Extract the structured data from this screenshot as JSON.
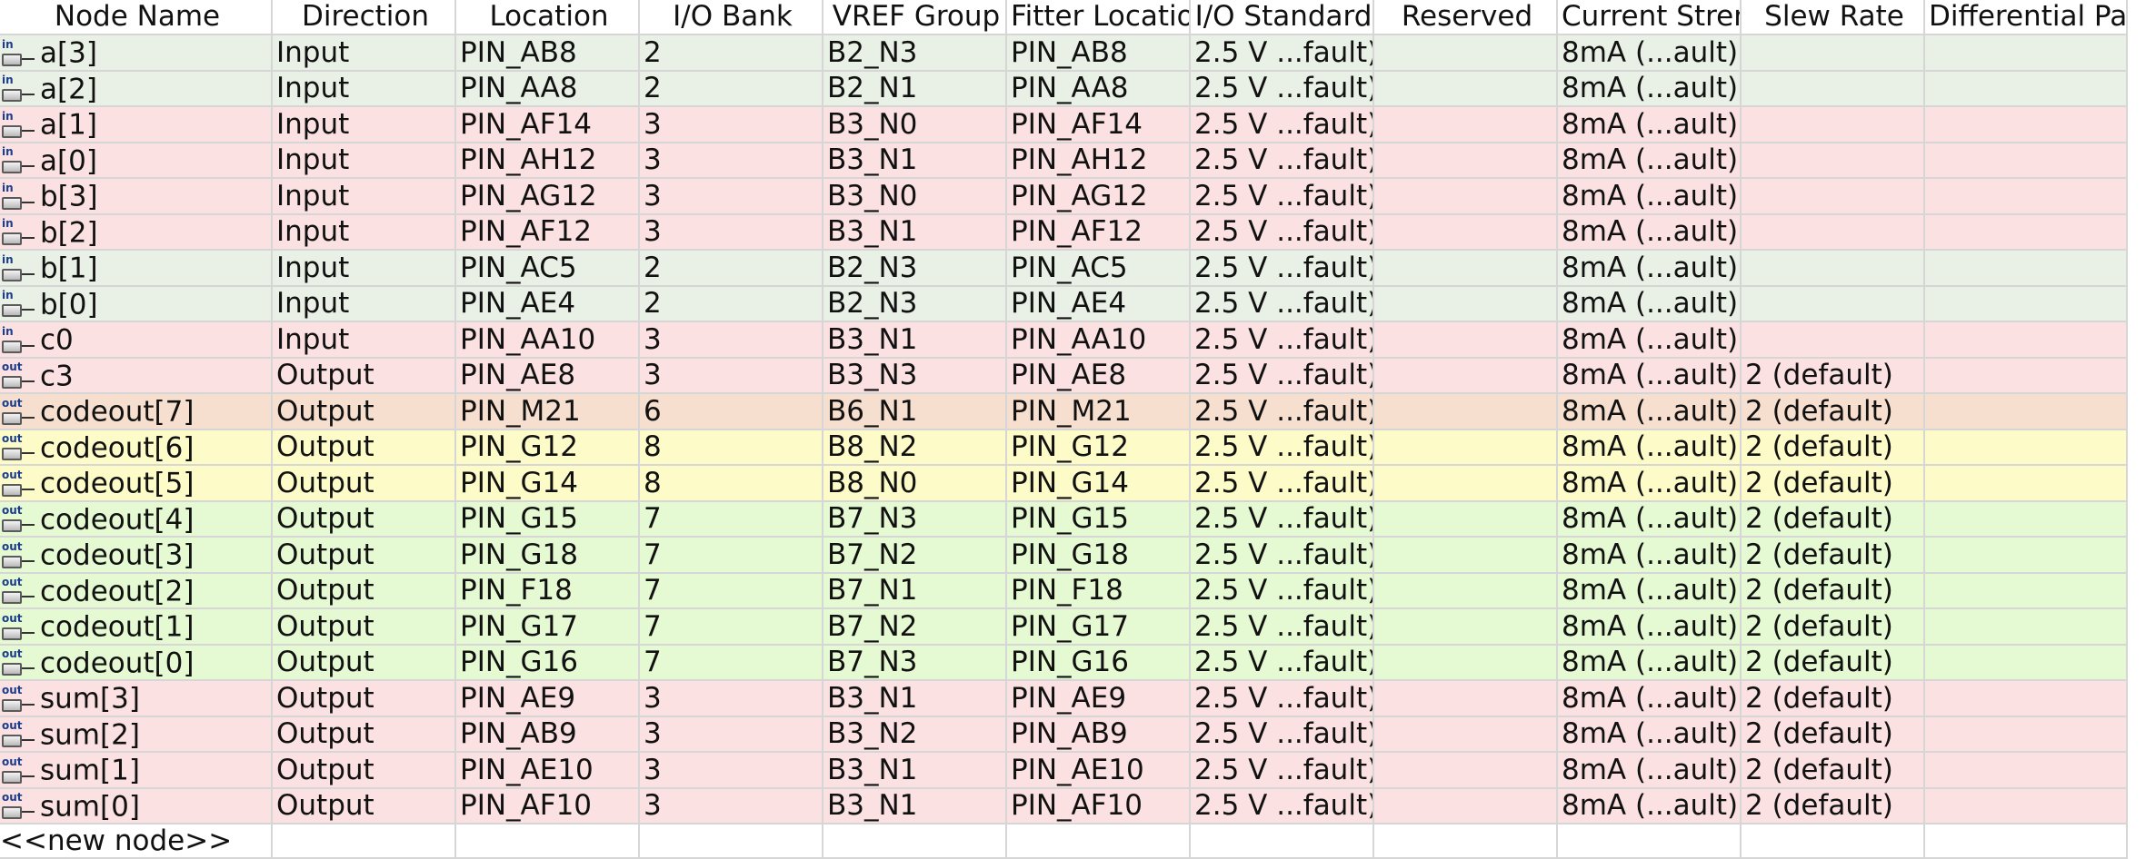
{
  "columns": [
    "Node Name",
    "Direction",
    "Location",
    "I/O Bank",
    "VREF Group",
    "Fitter Location",
    "I/O Standard",
    "Reserved",
    "Current Strength",
    "Slew Rate",
    "Differential Pair"
  ],
  "rows": [
    {
      "icon": "in",
      "name": "a[3]",
      "direction": "Input",
      "location": "PIN_AB8",
      "bank": "2",
      "vref": "B2_N3",
      "fitter": "PIN_AB8",
      "standard": "2.5 V ...fault)",
      "reserved": "",
      "current": "8mA (...ault)",
      "slew": "",
      "diff": "",
      "color": "#e9f1e6"
    },
    {
      "icon": "in",
      "name": "a[2]",
      "direction": "Input",
      "location": "PIN_AA8",
      "bank": "2",
      "vref": "B2_N1",
      "fitter": "PIN_AA8",
      "standard": "2.5 V ...fault)",
      "reserved": "",
      "current": "8mA (...ault)",
      "slew": "",
      "diff": "",
      "color": "#e9f1e6"
    },
    {
      "icon": "in",
      "name": "a[1]",
      "direction": "Input",
      "location": "PIN_AF14",
      "bank": "3",
      "vref": "B3_N0",
      "fitter": "PIN_AF14",
      "standard": "2.5 V ...fault)",
      "reserved": "",
      "current": "8mA (...ault)",
      "slew": "",
      "diff": "",
      "color": "#fbe1e1"
    },
    {
      "icon": "in",
      "name": "a[0]",
      "direction": "Input",
      "location": "PIN_AH12",
      "bank": "3",
      "vref": "B3_N1",
      "fitter": "PIN_AH12",
      "standard": "2.5 V ...fault)",
      "reserved": "",
      "current": "8mA (...ault)",
      "slew": "",
      "diff": "",
      "color": "#fbe1e1"
    },
    {
      "icon": "in",
      "name": "b[3]",
      "direction": "Input",
      "location": "PIN_AG12",
      "bank": "3",
      "vref": "B3_N0",
      "fitter": "PIN_AG12",
      "standard": "2.5 V ...fault)",
      "reserved": "",
      "current": "8mA (...ault)",
      "slew": "",
      "diff": "",
      "color": "#fbe1e1"
    },
    {
      "icon": "in",
      "name": "b[2]",
      "direction": "Input",
      "location": "PIN_AF12",
      "bank": "3",
      "vref": "B3_N1",
      "fitter": "PIN_AF12",
      "standard": "2.5 V ...fault)",
      "reserved": "",
      "current": "8mA (...ault)",
      "slew": "",
      "diff": "",
      "color": "#fbe1e1"
    },
    {
      "icon": "in",
      "name": "b[1]",
      "direction": "Input",
      "location": "PIN_AC5",
      "bank": "2",
      "vref": "B2_N3",
      "fitter": "PIN_AC5",
      "standard": "2.5 V ...fault)",
      "reserved": "",
      "current": "8mA (...ault)",
      "slew": "",
      "diff": "",
      "color": "#e9f1e6"
    },
    {
      "icon": "in",
      "name": "b[0]",
      "direction": "Input",
      "location": "PIN_AE4",
      "bank": "2",
      "vref": "B2_N3",
      "fitter": "PIN_AE4",
      "standard": "2.5 V ...fault)",
      "reserved": "",
      "current": "8mA (...ault)",
      "slew": "",
      "diff": "",
      "color": "#e9f1e6"
    },
    {
      "icon": "in",
      "name": "c0",
      "direction": "Input",
      "location": "PIN_AA10",
      "bank": "3",
      "vref": "B3_N1",
      "fitter": "PIN_AA10",
      "standard": "2.5 V ...fault)",
      "reserved": "",
      "current": "8mA (...ault)",
      "slew": "",
      "diff": "",
      "color": "#fbe1e1"
    },
    {
      "icon": "out",
      "name": "c3",
      "direction": "Output",
      "location": "PIN_AE8",
      "bank": "3",
      "vref": "B3_N3",
      "fitter": "PIN_AE8",
      "standard": "2.5 V ...fault)",
      "reserved": "",
      "current": "8mA (...ault)",
      "slew": "2 (default)",
      "diff": "",
      "color": "#fbe1e1"
    },
    {
      "icon": "out",
      "name": "codeout[7]",
      "direction": "Output",
      "location": "PIN_M21",
      "bank": "6",
      "vref": "B6_N1",
      "fitter": "PIN_M21",
      "standard": "2.5 V ...fault)",
      "reserved": "",
      "current": "8mA (...ault)",
      "slew": "2 (default)",
      "diff": "",
      "color": "#f7dfcf"
    },
    {
      "icon": "out",
      "name": "codeout[6]",
      "direction": "Output",
      "location": "PIN_G12",
      "bank": "8",
      "vref": "B8_N2",
      "fitter": "PIN_G12",
      "standard": "2.5 V ...fault)",
      "reserved": "",
      "current": "8mA (...ault)",
      "slew": "2 (default)",
      "diff": "",
      "color": "#fdfbc8"
    },
    {
      "icon": "out",
      "name": "codeout[5]",
      "direction": "Output",
      "location": "PIN_G14",
      "bank": "8",
      "vref": "B8_N0",
      "fitter": "PIN_G14",
      "standard": "2.5 V ...fault)",
      "reserved": "",
      "current": "8mA (...ault)",
      "slew": "2 (default)",
      "diff": "",
      "color": "#fdfbc8"
    },
    {
      "icon": "out",
      "name": "codeout[4]",
      "direction": "Output",
      "location": "PIN_G15",
      "bank": "7",
      "vref": "B7_N3",
      "fitter": "PIN_G15",
      "standard": "2.5 V ...fault)",
      "reserved": "",
      "current": "8mA (...ault)",
      "slew": "2 (default)",
      "diff": "",
      "color": "#e5f9d2"
    },
    {
      "icon": "out",
      "name": "codeout[3]",
      "direction": "Output",
      "location": "PIN_G18",
      "bank": "7",
      "vref": "B7_N2",
      "fitter": "PIN_G18",
      "standard": "2.5 V ...fault)",
      "reserved": "",
      "current": "8mA (...ault)",
      "slew": "2 (default)",
      "diff": "",
      "color": "#e5f9d2"
    },
    {
      "icon": "out",
      "name": "codeout[2]",
      "direction": "Output",
      "location": "PIN_F18",
      "bank": "7",
      "vref": "B7_N1",
      "fitter": "PIN_F18",
      "standard": "2.5 V ...fault)",
      "reserved": "",
      "current": "8mA (...ault)",
      "slew": "2 (default)",
      "diff": "",
      "color": "#e5f9d2"
    },
    {
      "icon": "out",
      "name": "codeout[1]",
      "direction": "Output",
      "location": "PIN_G17",
      "bank": "7",
      "vref": "B7_N2",
      "fitter": "PIN_G17",
      "standard": "2.5 V ...fault)",
      "reserved": "",
      "current": "8mA (...ault)",
      "slew": "2 (default)",
      "diff": "",
      "color": "#e5f9d2"
    },
    {
      "icon": "out",
      "name": "codeout[0]",
      "direction": "Output",
      "location": "PIN_G16",
      "bank": "7",
      "vref": "B7_N3",
      "fitter": "PIN_G16",
      "standard": "2.5 V ...fault)",
      "reserved": "",
      "current": "8mA (...ault)",
      "slew": "2 (default)",
      "diff": "",
      "color": "#e5f9d2"
    },
    {
      "icon": "out",
      "name": "sum[3]",
      "direction": "Output",
      "location": "PIN_AE9",
      "bank": "3",
      "vref": "B3_N1",
      "fitter": "PIN_AE9",
      "standard": "2.5 V ...fault)",
      "reserved": "",
      "current": "8mA (...ault)",
      "slew": "2 (default)",
      "diff": "",
      "color": "#fbe1e1"
    },
    {
      "icon": "out",
      "name": "sum[2]",
      "direction": "Output",
      "location": "PIN_AB9",
      "bank": "3",
      "vref": "B3_N2",
      "fitter": "PIN_AB9",
      "standard": "2.5 V ...fault)",
      "reserved": "",
      "current": "8mA (...ault)",
      "slew": "2 (default)",
      "diff": "",
      "color": "#fbe1e1"
    },
    {
      "icon": "out",
      "name": "sum[1]",
      "direction": "Output",
      "location": "PIN_AE10",
      "bank": "3",
      "vref": "B3_N1",
      "fitter": "PIN_AE10",
      "standard": "2.5 V ...fault)",
      "reserved": "",
      "current": "8mA (...ault)",
      "slew": "2 (default)",
      "diff": "",
      "color": "#fbe1e1"
    },
    {
      "icon": "out",
      "name": "sum[0]",
      "direction": "Output",
      "location": "PIN_AF10",
      "bank": "3",
      "vref": "B3_N1",
      "fitter": "PIN_AF10",
      "standard": "2.5 V ...fault)",
      "reserved": "",
      "current": "8mA (...ault)",
      "slew": "2 (default)",
      "diff": "",
      "color": "#fbe1e1"
    }
  ],
  "new_node_label": "<<new node>>",
  "icons": {
    "in": "input-pin-icon",
    "out": "output-pin-icon"
  }
}
